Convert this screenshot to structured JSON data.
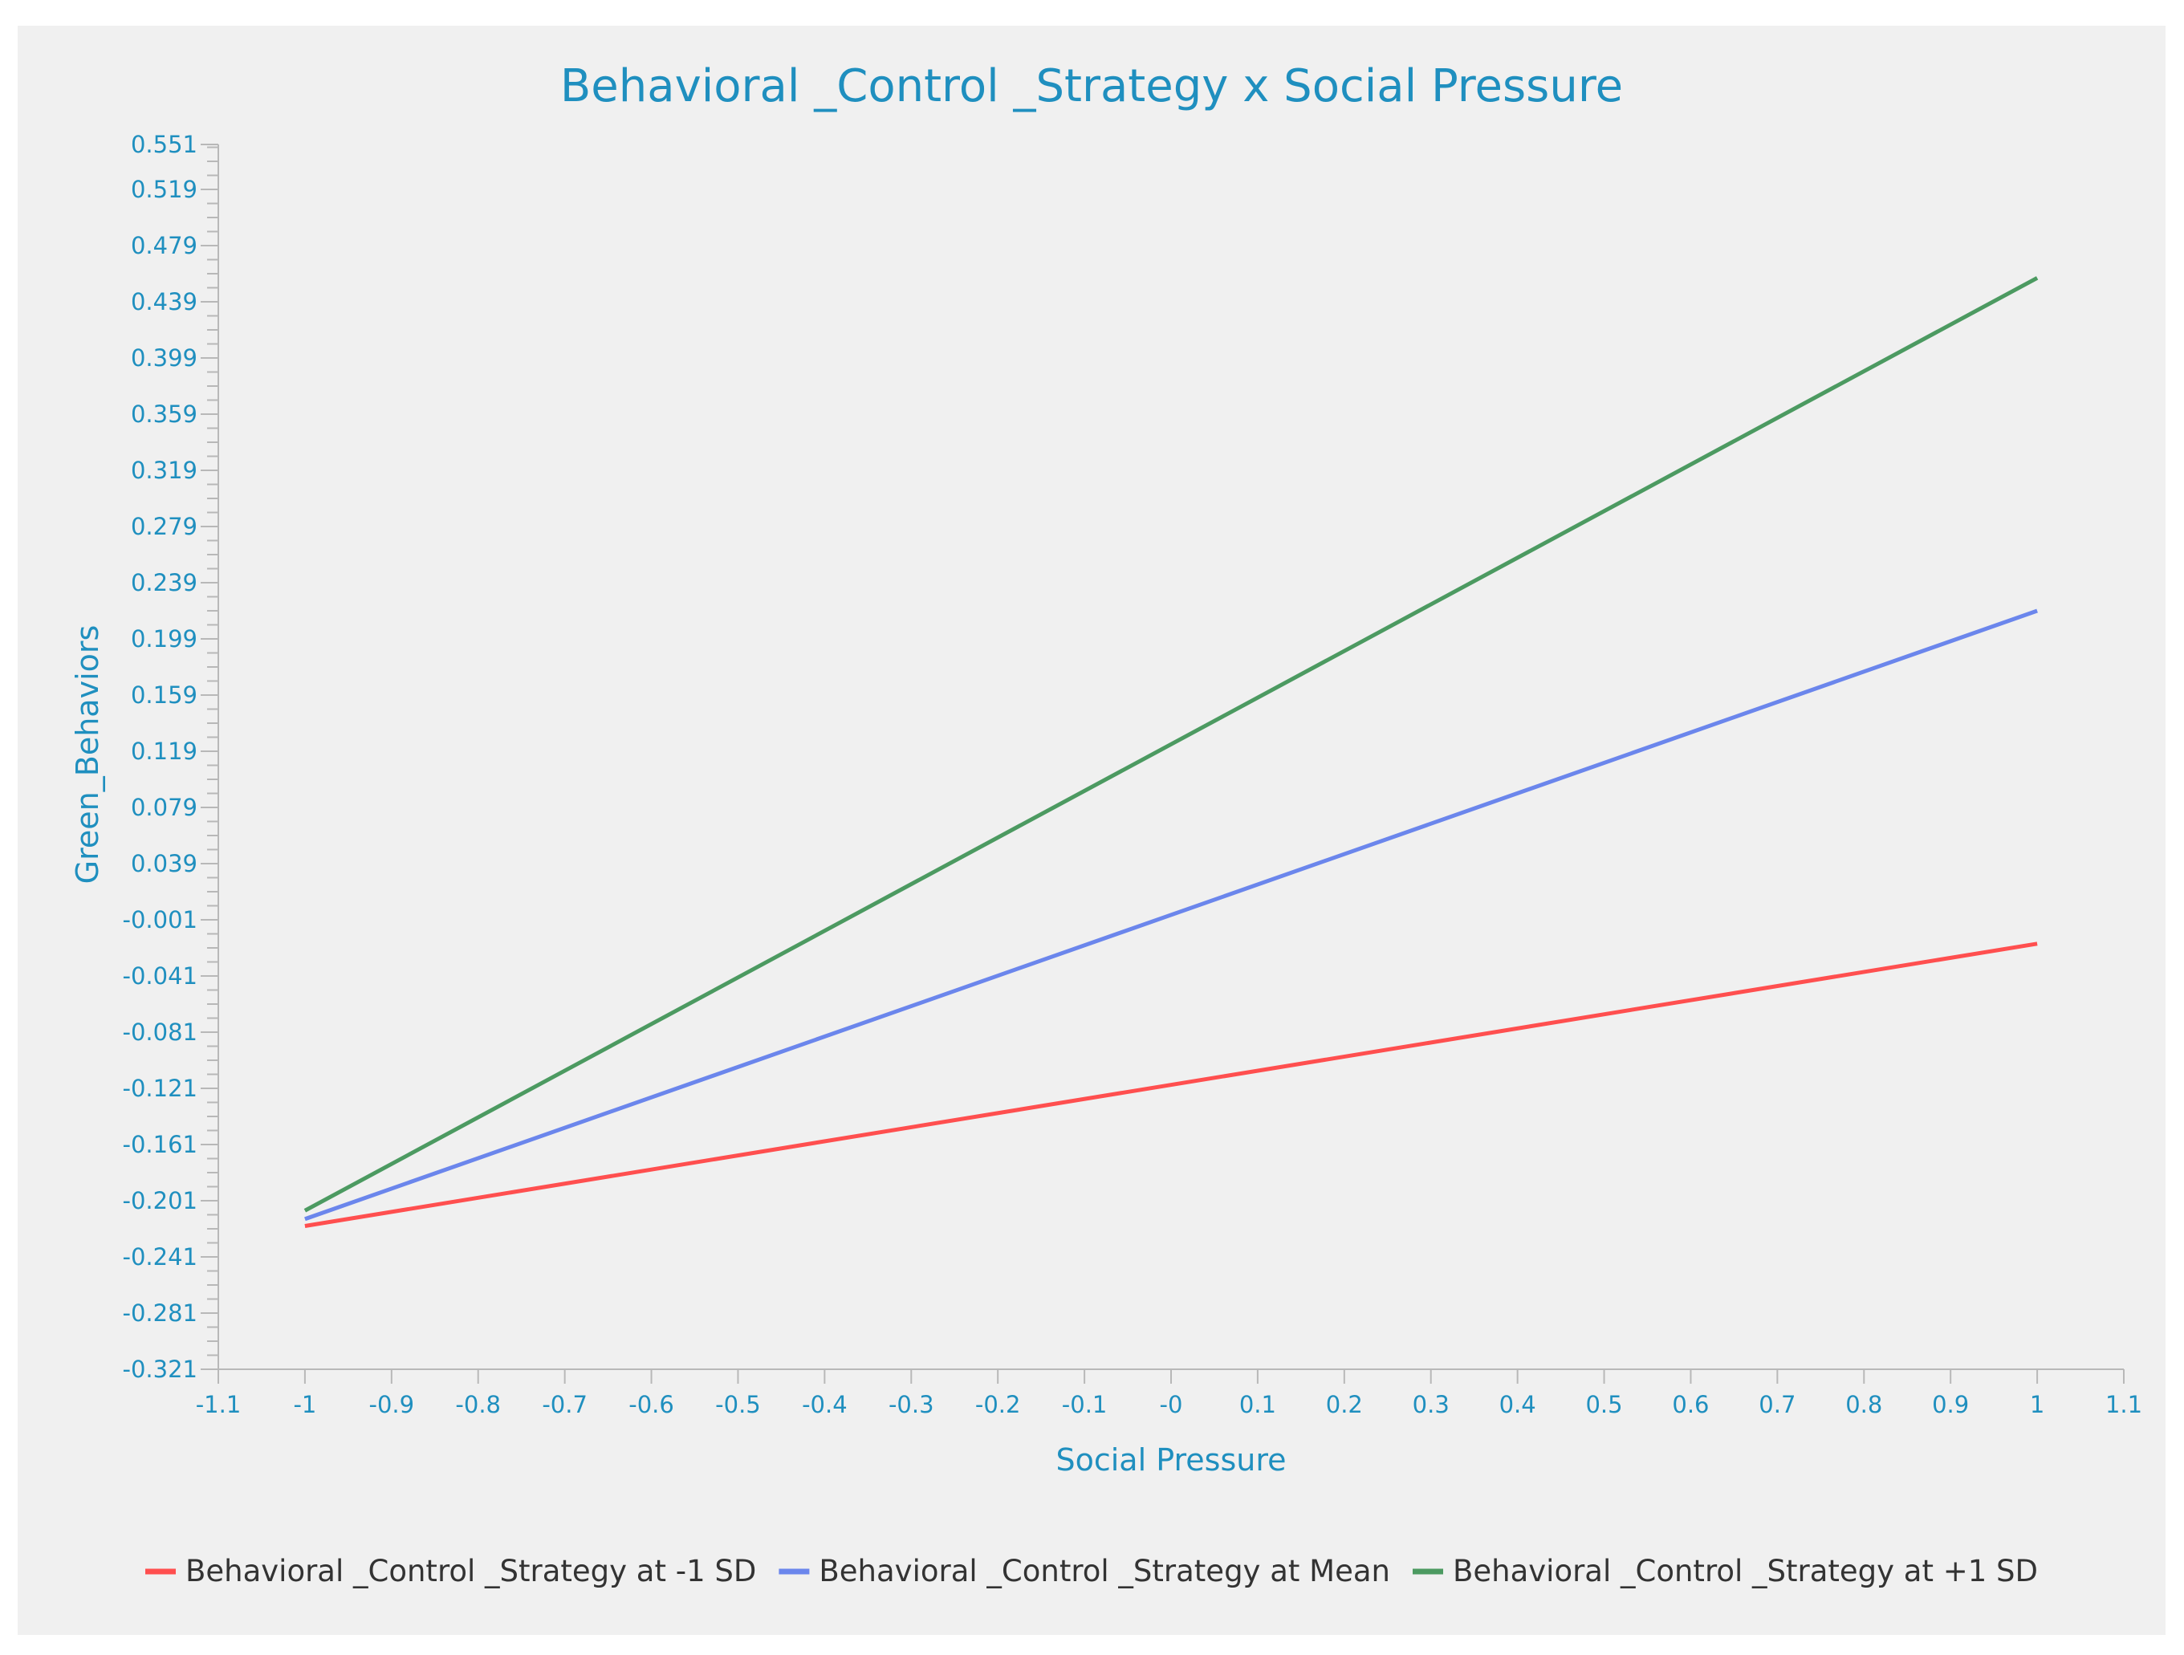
{
  "chart_data": {
    "type": "line",
    "title": "Behavioral _Control _Strategy x Social Pressure",
    "xlabel": "Social Pressure",
    "ylabel": "Green_Behaviors",
    "xlim": [
      -1.1,
      1.1
    ],
    "ylim": [
      -0.321,
      0.551
    ],
    "x_ticks": [
      "-1.1",
      "-1",
      "-0.9",
      "-0.8",
      "-0.7",
      "-0.6",
      "-0.5",
      "-0.4",
      "-0.3",
      "-0.2",
      "-0.1",
      "-0",
      "0.1",
      "0.2",
      "0.3",
      "0.4",
      "0.5",
      "0.6",
      "0.7",
      "0.8",
      "0.9",
      "1",
      "1.1"
    ],
    "x_tick_values": [
      -1.1,
      -1.0,
      -0.9,
      -0.8,
      -0.7,
      -0.6,
      -0.5,
      -0.4,
      -0.3,
      -0.2,
      -0.1,
      0.0,
      0.1,
      0.2,
      0.3,
      0.4,
      0.5,
      0.6,
      0.7,
      0.8,
      0.9,
      1.0,
      1.1
    ],
    "y_ticks": [
      "0.551",
      "0.519",
      "0.479",
      "0.439",
      "0.399",
      "0.359",
      "0.319",
      "0.279",
      "0.239",
      "0.199",
      "0.159",
      "0.119",
      "0.079",
      "0.039",
      "-0.001",
      "-0.041",
      "-0.081",
      "-0.121",
      "-0.161",
      "-0.201",
      "-0.241",
      "-0.281",
      "-0.321"
    ],
    "y_tick_values": [
      0.551,
      0.519,
      0.479,
      0.439,
      0.399,
      0.359,
      0.319,
      0.279,
      0.239,
      0.199,
      0.159,
      0.119,
      0.079,
      0.039,
      -0.001,
      -0.041,
      -0.081,
      -0.121,
      -0.161,
      -0.201,
      -0.241,
      -0.281,
      -0.321
    ],
    "y_minor_step": 0.01,
    "grid": false,
    "legend_position": "bottom",
    "series": [
      {
        "name": "Behavioral _Control _Strategy at -1 SD",
        "color": "#ff4f4f",
        "x": [
          -1,
          1
        ],
        "y": [
          -0.219,
          -0.018
        ]
      },
      {
        "name": "Behavioral _Control _Strategy at Mean",
        "color": "#6b86ec",
        "x": [
          -1,
          1
        ],
        "y": [
          -0.214,
          0.219
        ]
      },
      {
        "name": "Behavioral _Control _Strategy at +1 SD",
        "color": "#4c9a61",
        "x": [
          -1,
          1
        ],
        "y": [
          -0.208,
          0.456
        ]
      }
    ],
    "colors": {
      "text": "#1f8fbf",
      "axis": "#b8b8b8",
      "legend_text": "#333333",
      "panel": "#f0f0f0"
    }
  }
}
